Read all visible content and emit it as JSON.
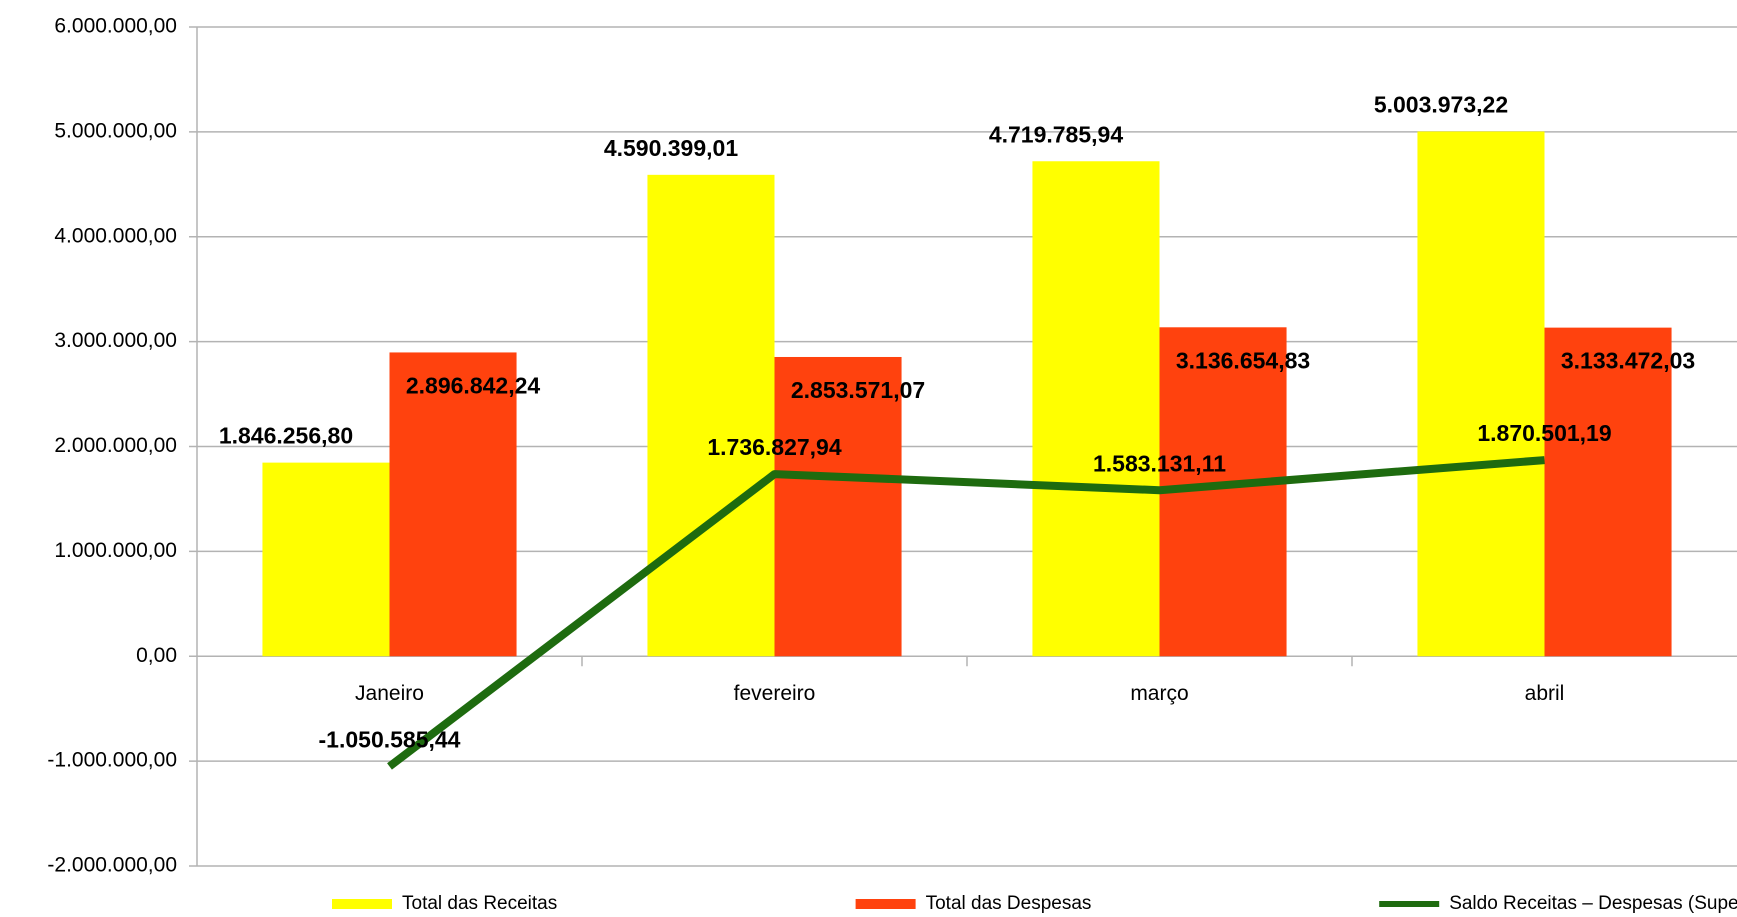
{
  "chart_data": {
    "type": "bar_line",
    "categories": [
      "Janeiro",
      "fevereiro",
      "março",
      "abril"
    ],
    "series": [
      {
        "name": "Total das Receitas",
        "color": "#ffff00",
        "type": "bar",
        "values": [
          1846256.8,
          4590399.01,
          4719785.94,
          5003973.22
        ],
        "value_labels": [
          "1.846.256,80",
          "4.590.399,01",
          "4.719.785,94",
          "5.003.973,22"
        ]
      },
      {
        "name": "Total das Despesas",
        "color": "#ff420e",
        "type": "bar",
        "values": [
          2896842.24,
          2853571.07,
          3136654.83,
          3133472.03
        ],
        "value_labels": [
          "2.896.842,24",
          "2.853.571,07",
          "3.136.654,83",
          "3.133.472,03"
        ]
      },
      {
        "name": "Saldo Receitas – Despesas (Superavit)",
        "color": "#1e6b0f",
        "type": "line",
        "values": [
          -1050585.44,
          1736827.94,
          1583131.11,
          1870501.19
        ],
        "value_labels": [
          "-1.050.585,44",
          "1.736.827,94",
          "1.583.131,11",
          "1.870.501,19"
        ]
      }
    ],
    "ylim": [
      -2000000,
      6000000
    ],
    "yticks": [
      {
        "value": -2000000,
        "label": "-2.000.000,00"
      },
      {
        "value": -1000000,
        "label": "-1.000.000,00"
      },
      {
        "value": 0,
        "label": "0,00"
      },
      {
        "value": 1000000,
        "label": "1.000.000,00"
      },
      {
        "value": 2000000,
        "label": "2.000.000,00"
      },
      {
        "value": 3000000,
        "label": "3.000.000,00"
      },
      {
        "value": 4000000,
        "label": "4.000.000,00"
      },
      {
        "value": 5000000,
        "label": "5.000.000,00"
      },
      {
        "value": 6000000,
        "label": "6.000.000,00"
      }
    ],
    "grid": true,
    "legend": "bottom"
  }
}
